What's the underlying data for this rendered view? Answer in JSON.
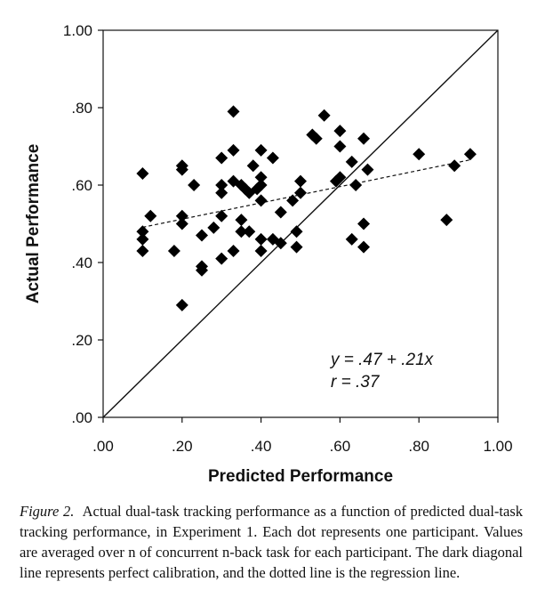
{
  "chart_data": {
    "type": "scatter",
    "xlabel": "Predicted Performance",
    "ylabel": "Actual Performance",
    "xlim": [
      0,
      1
    ],
    "ylim": [
      0,
      1
    ],
    "x_ticks": [
      ".00",
      ".20",
      ".40",
      ".60",
      ".80",
      "1.00"
    ],
    "y_ticks": [
      ".00",
      ".20",
      ".40",
      ".60",
      ".80",
      "1.00"
    ],
    "grid": false,
    "points": [
      [
        0.1,
        0.63
      ],
      [
        0.1,
        0.48
      ],
      [
        0.1,
        0.46
      ],
      [
        0.1,
        0.43
      ],
      [
        0.12,
        0.52
      ],
      [
        0.18,
        0.43
      ],
      [
        0.2,
        0.65
      ],
      [
        0.2,
        0.64
      ],
      [
        0.2,
        0.52
      ],
      [
        0.2,
        0.5
      ],
      [
        0.2,
        0.29
      ],
      [
        0.23,
        0.6
      ],
      [
        0.25,
        0.47
      ],
      [
        0.25,
        0.39
      ],
      [
        0.25,
        0.38
      ],
      [
        0.28,
        0.49
      ],
      [
        0.3,
        0.67
      ],
      [
        0.3,
        0.6
      ],
      [
        0.3,
        0.58
      ],
      [
        0.3,
        0.52
      ],
      [
        0.3,
        0.41
      ],
      [
        0.33,
        0.79
      ],
      [
        0.33,
        0.69
      ],
      [
        0.33,
        0.61
      ],
      [
        0.33,
        0.43
      ],
      [
        0.35,
        0.6
      ],
      [
        0.35,
        0.51
      ],
      [
        0.35,
        0.48
      ],
      [
        0.36,
        0.59
      ],
      [
        0.37,
        0.58
      ],
      [
        0.37,
        0.48
      ],
      [
        0.38,
        0.65
      ],
      [
        0.39,
        0.59
      ],
      [
        0.4,
        0.69
      ],
      [
        0.4,
        0.62
      ],
      [
        0.4,
        0.6
      ],
      [
        0.4,
        0.56
      ],
      [
        0.4,
        0.46
      ],
      [
        0.4,
        0.43
      ],
      [
        0.43,
        0.67
      ],
      [
        0.43,
        0.46
      ],
      [
        0.45,
        0.53
      ],
      [
        0.45,
        0.45
      ],
      [
        0.48,
        0.56
      ],
      [
        0.49,
        0.48
      ],
      [
        0.49,
        0.44
      ],
      [
        0.5,
        0.61
      ],
      [
        0.5,
        0.58
      ],
      [
        0.53,
        0.73
      ],
      [
        0.54,
        0.72
      ],
      [
        0.56,
        0.78
      ],
      [
        0.59,
        0.61
      ],
      [
        0.6,
        0.7
      ],
      [
        0.6,
        0.74
      ],
      [
        0.6,
        0.62
      ],
      [
        0.63,
        0.66
      ],
      [
        0.63,
        0.46
      ],
      [
        0.64,
        0.6
      ],
      [
        0.66,
        0.72
      ],
      [
        0.66,
        0.5
      ],
      [
        0.66,
        0.44
      ],
      [
        0.67,
        0.64
      ],
      [
        0.8,
        0.68
      ],
      [
        0.87,
        0.51
      ],
      [
        0.89,
        0.65
      ],
      [
        0.93,
        0.68
      ]
    ],
    "regression": {
      "intercept": 0.47,
      "slope": 0.21,
      "x_range": [
        0.1,
        0.93
      ],
      "style": "dotted"
    },
    "calibration_line": {
      "from": [
        0,
        0
      ],
      "to": [
        1,
        1
      ],
      "style": "solid"
    },
    "annotation": {
      "equation": "y = .47 + .21x",
      "r": "r = .37",
      "position": "bottom-right"
    }
  },
  "caption": {
    "label": "Figure 2.",
    "text": "Actual dual-task tracking performance as a function of predicted dual-task tracking performance, in Experiment 1. Each dot represents one participant. Values are averaged over n of concurrent n-back task for each participant. The dark diagonal line represents perfect calibration, and the dotted line is the regression line."
  }
}
